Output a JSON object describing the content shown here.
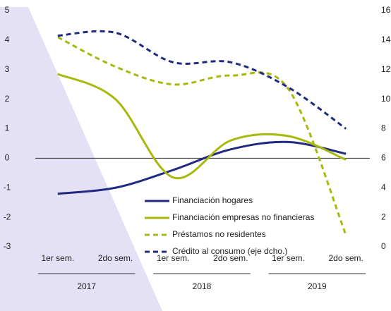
{
  "chart_data": {
    "type": "line",
    "categories": [
      "1er sem.",
      "2do sem.",
      "1er sem.",
      "2do sem.",
      "1er sem.",
      "2do sem."
    ],
    "years": [
      "2017",
      "2018",
      "2019"
    ],
    "ylim": [
      -3,
      5
    ],
    "yticks": [
      -3,
      -2,
      -1,
      0,
      1,
      2,
      3,
      4,
      5
    ],
    "y2lim": [
      0,
      16
    ],
    "y2ticks": [
      0,
      2,
      4,
      6,
      8,
      10,
      12,
      14,
      16
    ],
    "series": [
      {
        "name": "Financiación hogares",
        "color": "#1f2a80",
        "dash": false,
        "values": [
          -1.2,
          -1.0,
          -0.4,
          0.3,
          0.55,
          0.15
        ]
      },
      {
        "name": "Financiación empresas no financieras",
        "color": "#a8b80d",
        "dash": false,
        "values": [
          2.85,
          2.0,
          -0.65,
          0.6,
          0.75,
          -0.05
        ]
      },
      {
        "name": "Préstamos no residentes",
        "color": "#a8b80d",
        "dash": true,
        "values": [
          4.1,
          3.1,
          2.5,
          2.8,
          2.35,
          -2.6
        ]
      },
      {
        "name": "Crédito al consumo (eje dcho.)",
        "color": "#1f2a80",
        "dash": true,
        "axis": "y2",
        "values": [
          14.3,
          14.5,
          12.5,
          12.5,
          10.8,
          8.0
        ]
      }
    ]
  }
}
